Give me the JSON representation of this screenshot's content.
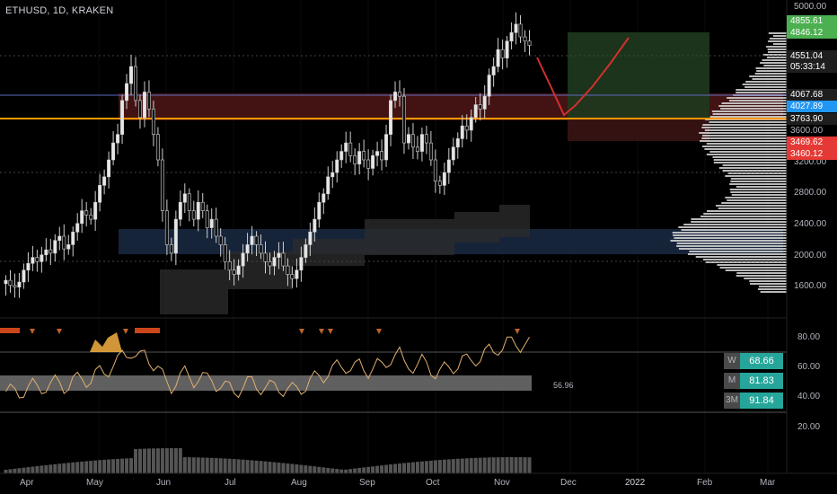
{
  "header": {
    "title": "ETHUSD, 1D, KRAKEN"
  },
  "price_axis": {
    "ticks": [
      "5000.00",
      "3200.00",
      "2800.00",
      "2400.00",
      "2000.00",
      "1600.00"
    ],
    "labels": [
      {
        "text": "4855.61",
        "color": "#4caf50"
      },
      {
        "text": "4846.12",
        "color": "#4caf50"
      },
      {
        "text": "4551.04",
        "color": "#1e1e1e"
      },
      {
        "text": "05:33:14",
        "color": "#1e1e1e"
      },
      {
        "text": "4067.68",
        "color": "#1e1e1e"
      },
      {
        "text": "4027.89",
        "color": "#2196f3"
      },
      {
        "text": "3763.90",
        "color": "#1e1e1e"
      },
      {
        "text": "3600.00",
        "color": "#000000"
      },
      {
        "text": "3469.62",
        "color": "#e53935"
      },
      {
        "text": "3460.12",
        "color": "#e53935"
      }
    ]
  },
  "rsi_axis": {
    "ticks": [
      "80.00",
      "60.00",
      "40.00",
      "20.00"
    ],
    "value_label": "56.96"
  },
  "timeframes": [
    {
      "key": "W",
      "value": "68.66",
      "color": "#26a69a"
    },
    {
      "key": "M",
      "value": "81.83",
      "color": "#26a69a"
    },
    {
      "key": "3M",
      "value": "91.84",
      "color": "#26a69a"
    }
  ],
  "time_axis": {
    "ticks": [
      "Apr",
      "May",
      "Jun",
      "Jul",
      "Aug",
      "Sep",
      "Oct",
      "Nov",
      "Dec",
      "2022",
      "Feb",
      "Mar"
    ]
  },
  "chart_data": {
    "type": "candlestick",
    "symbol": "ETHUSD",
    "interval": "1D",
    "exchange": "KRAKEN",
    "ylim": [
      1400,
      5000
    ],
    "close_path": [
      1780,
      1720,
      1700,
      1760,
      1900,
      1980,
      2050,
      2000,
      2080,
      2140,
      2100,
      2250,
      2300,
      2150,
      2200,
      2350,
      2450,
      2600,
      2550,
      2500,
      2700,
      2900,
      3000,
      3200,
      3400,
      3500,
      3900,
      4100,
      4300,
      3900,
      3700,
      4000,
      3800,
      3500,
      3200,
      2600,
      2200,
      2100,
      2500,
      2700,
      2800,
      2600,
      2500,
      2700,
      2600,
      2400,
      2500,
      2300,
      2200,
      2000,
      1900,
      1850,
      1950,
      2100,
      2200,
      2300,
      2200,
      2100,
      2000,
      1950,
      2050,
      2100,
      1950,
      1850,
      1800,
      1900,
      2050,
      2200,
      2350,
      2500,
      2700,
      2800,
      3000,
      3050,
      3200,
      3300,
      3400,
      3250,
      3150,
      3300,
      3200,
      3100,
      3250,
      3300,
      3200,
      3500,
      3900,
      4000,
      3950,
      3400,
      3500,
      3350,
      3300,
      3500,
      3400,
      3200,
      2950,
      2900,
      3050,
      3200,
      3350,
      3450,
      3600,
      3550,
      3700,
      3850,
      3800,
      3950,
      4200,
      4300,
      4500,
      4400,
      4600,
      4700,
      4800,
      4650,
      4600,
      4550
    ]
  }
}
